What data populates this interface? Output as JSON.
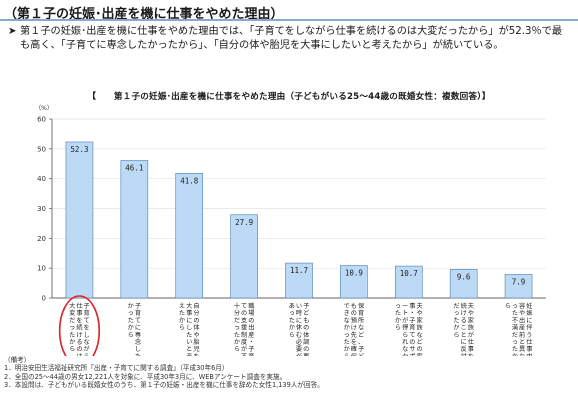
{
  "section_title": "（第１子の妊娠･出産を機に仕事をやめた理由）",
  "summary": {
    "arrow": "➤",
    "text": "第１子の妊娠･出産を機に仕事をやめた理由では、「子育てをしながら仕事を続けるのは大変だったから」が52.3％で最も高く、「子育てに専念したかったから」、「自分の体や胎児を大事にしたいと考えたから」が続いている。"
  },
  "chart_title": "【　　第１子の妊娠･出産を機に仕事をやめた理由（子どもがいる25～44歳の既婚女性：複数回答）】",
  "colors": {
    "bar_fill": "#bcd9f5",
    "bar_stroke": "#4f7fb5",
    "axis": "#666666",
    "grid": "#e3e3e3",
    "highlight": "#d9262b",
    "rule": "#8aa8c8"
  },
  "chart_data": {
    "type": "bar",
    "y_unit": "（%）",
    "ylim": [
      0,
      60
    ],
    "y_ticks": [
      "0",
      "10",
      "20",
      "30",
      "40",
      "50",
      "60"
    ],
    "grid": true,
    "categories": [
      "子育てをしながら仕事を続けるのは大変だったから",
      "子育てに専念したかったから",
      "自分の体や胎児を大事にしたいと考えたから",
      "職場の出産・子育ての支援制度が不十分だったから",
      "子どもの体調の悪い時に休む必要があったから",
      "保育所など、子どもの預け先を確保できなかったから",
      "夫や家族などの家事・子育てのサポートが得られなかったから",
      "夫や家族が仕事を続けることに反対だったから",
      "妊娠に伴う仕事内容や出産前と異なった不満だったから"
    ],
    "values": [
      52.3,
      46.1,
      41.8,
      27.9,
      11.7,
      10.9,
      10.7,
      9.6,
      7.9
    ],
    "value_labels": [
      "52.3",
      "46.1",
      "41.8",
      "27.9",
      "11.7",
      "10.9",
      "10.7",
      "9.6",
      "7.9"
    ],
    "highlighted_index": 0
  },
  "notes": [
    "（備考）",
    "1．明治安田生活福祉研究所「出産・子育てに関する調査」（平成30年6月）",
    "2．全国の25～44歳の男女12,221人を対象に、平成30年3月に、WEBアンケート調査を実施。",
    "3．本設問は、子どもがいる既婚女性のうち、第１子の妊娠・出産を機に仕事を辞めた女性1,139人が回答。"
  ]
}
